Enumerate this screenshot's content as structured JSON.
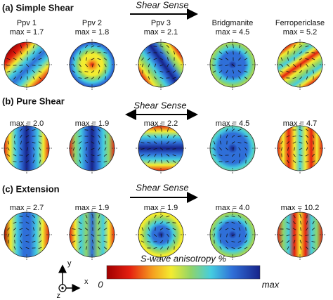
{
  "panels": [
    {
      "title": "(a) Simple Shear",
      "shear_sense": "Shear Sense",
      "figures": [
        {
          "label": "Ppv 1",
          "max": "max = 1.7"
        },
        {
          "label": "Ppv 2",
          "max": "max = 1.8"
        },
        {
          "label": "Ppv 3",
          "max": "max = 2.1"
        },
        {
          "label": "Bridgmanite",
          "max": "max = 4.5"
        },
        {
          "label": "Ferropericlase",
          "max": "max = 5.2"
        }
      ]
    },
    {
      "title": "(b) Pure Shear",
      "shear_sense": "Shear Sense",
      "figures": [
        {
          "max": "max = 2.0"
        },
        {
          "max": "max = 1.9"
        },
        {
          "max": "max = 2.2"
        },
        {
          "max": "max = 4.5"
        },
        {
          "max": "max = 4.7"
        }
      ]
    },
    {
      "title": "(c) Extension",
      "shear_sense": "Shear Sense",
      "figures": [
        {
          "max": "max = 2.7"
        },
        {
          "max": "max = 1.9"
        },
        {
          "max": "max = 1.9"
        },
        {
          "max": "max = 4.0"
        },
        {
          "max": "max = 10.2"
        }
      ]
    }
  ],
  "colorbar": {
    "title": "S-wave anisotropy %",
    "min_label": "0",
    "max_label": "max"
  },
  "axes": {
    "y": "y",
    "x": "x",
    "z": "z"
  }
}
